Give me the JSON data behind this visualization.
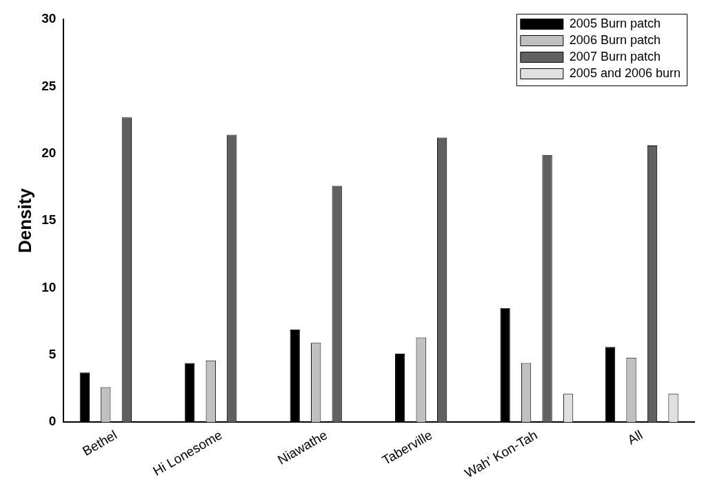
{
  "chart_data": {
    "type": "bar",
    "ylabel": "Density",
    "categories": [
      "Bethel",
      "Hi Lonesome",
      "Niawathe",
      "Taberville",
      "Wah' Kon-Tah",
      "All"
    ],
    "series": [
      {
        "name": "2005 Burn patch",
        "color": "#000000",
        "values": [
          3.7,
          4.4,
          6.9,
          5.1,
          8.5,
          5.6
        ]
      },
      {
        "name": "2006 Burn patch",
        "color": "#c0c0c0",
        "values": [
          2.6,
          4.6,
          5.9,
          6.3,
          4.4,
          4.8
        ]
      },
      {
        "name": "2007 Burn patch",
        "color": "#606060",
        "values": [
          22.7,
          21.4,
          17.6,
          21.2,
          19.9,
          20.6
        ]
      },
      {
        "name": "2005 and 2006 burn",
        "color": "#e0e0e0",
        "values": [
          null,
          null,
          null,
          null,
          2.1,
          2.1
        ]
      }
    ],
    "ylim": [
      0,
      30
    ],
    "yticks": [
      0,
      5,
      10,
      15,
      20,
      25,
      30
    ],
    "grid": false,
    "legend": "top right"
  }
}
